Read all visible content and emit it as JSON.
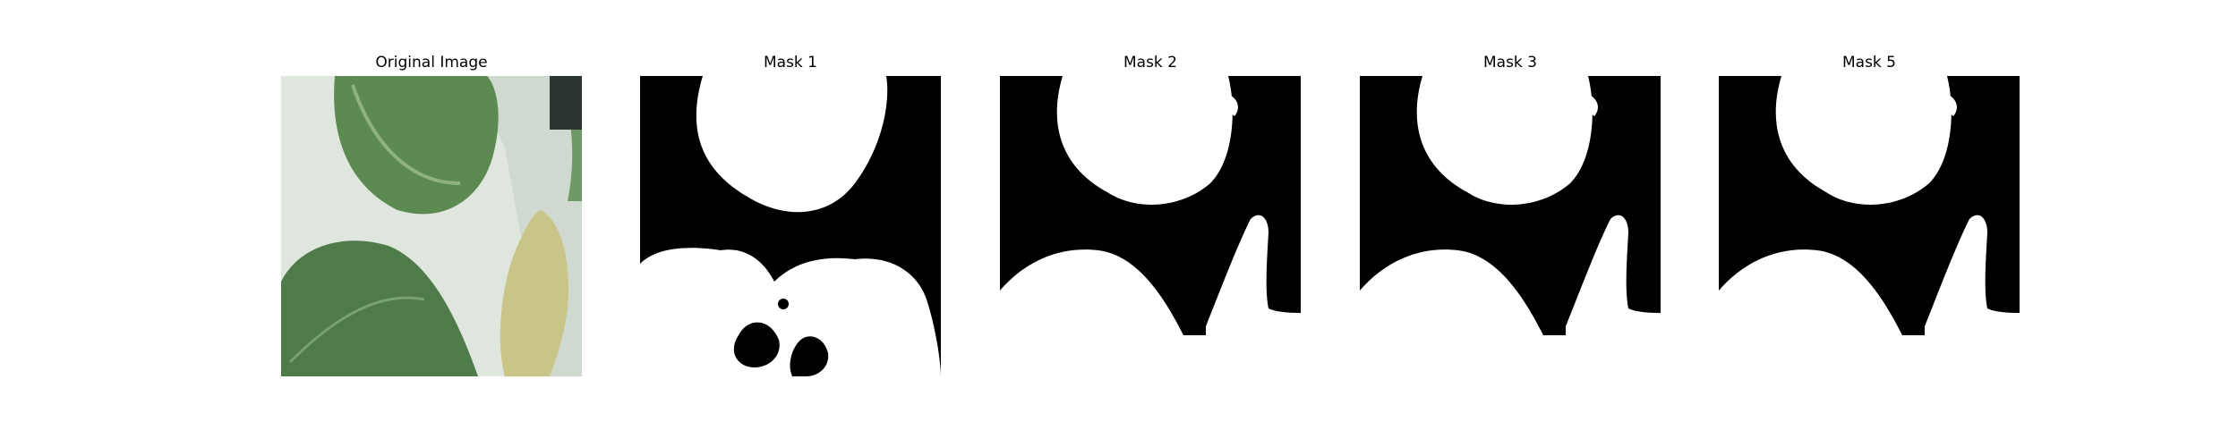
{
  "figure": {
    "panels": [
      {
        "title": "Original Image",
        "kind": "photo"
      },
      {
        "title": "Mask 1",
        "kind": "mask"
      },
      {
        "title": "Mask 2",
        "kind": "mask"
      },
      {
        "title": "Mask 3",
        "kind": "mask"
      },
      {
        "title": "Mask 5",
        "kind": "mask"
      }
    ]
  },
  "colors": {
    "mask_foreground": "#ffffff",
    "mask_background": "#000000",
    "photo_background": "#cfd9cf",
    "leaf_dark": "#4f7a4a",
    "leaf_light": "#6f9a65",
    "stem_yellow": "#c9c488"
  }
}
